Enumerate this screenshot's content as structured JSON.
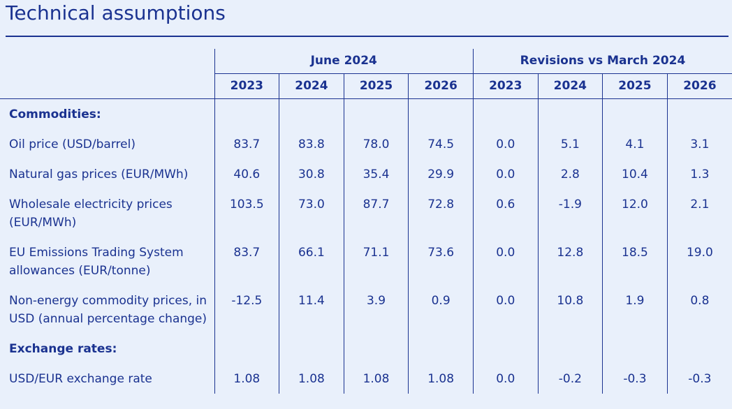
{
  "title": "Technical assumptions",
  "table": {
    "groups": [
      "June 2024",
      "Revisions vs March 2024"
    ],
    "years": [
      "2023",
      "2024",
      "2025",
      "2026",
      "2023",
      "2024",
      "2025",
      "2026"
    ],
    "sections": [
      {
        "label": "Commodities:",
        "rows": [
          {
            "label": "Oil price (USD/barrel)",
            "values": [
              "83.7",
              "83.8",
              "78.0",
              "74.5",
              "0.0",
              "5.1",
              "4.1",
              "3.1"
            ]
          },
          {
            "label": "Natural gas prices (EUR/MWh)",
            "values": [
              "40.6",
              "30.8",
              "35.4",
              "29.9",
              "0.0",
              "2.8",
              "10.4",
              "1.3"
            ]
          },
          {
            "label": "Wholesale electricity prices (EUR/MWh)",
            "values": [
              "103.5",
              "73.0",
              "87.7",
              "72.8",
              "0.6",
              "-1.9",
              "12.0",
              "2.1"
            ]
          },
          {
            "label": "EU Emissions Trading System allowances (EUR/tonne)",
            "values": [
              "83.7",
              "66.1",
              "71.1",
              "73.6",
              "0.0",
              "12.8",
              "18.5",
              "19.0"
            ]
          },
          {
            "label": "Non-energy commodity prices, in USD (annual percentage change)",
            "values": [
              "-12.5",
              "11.4",
              "3.9",
              "0.9",
              "0.0",
              "10.8",
              "1.9",
              "0.8"
            ]
          }
        ]
      },
      {
        "label": "Exchange rates:",
        "rows": [
          {
            "label": "USD/EUR exchange rate",
            "values": [
              "1.08",
              "1.08",
              "1.08",
              "1.08",
              "0.0",
              "-0.2",
              "-0.3",
              "-0.3"
            ]
          }
        ]
      }
    ]
  }
}
